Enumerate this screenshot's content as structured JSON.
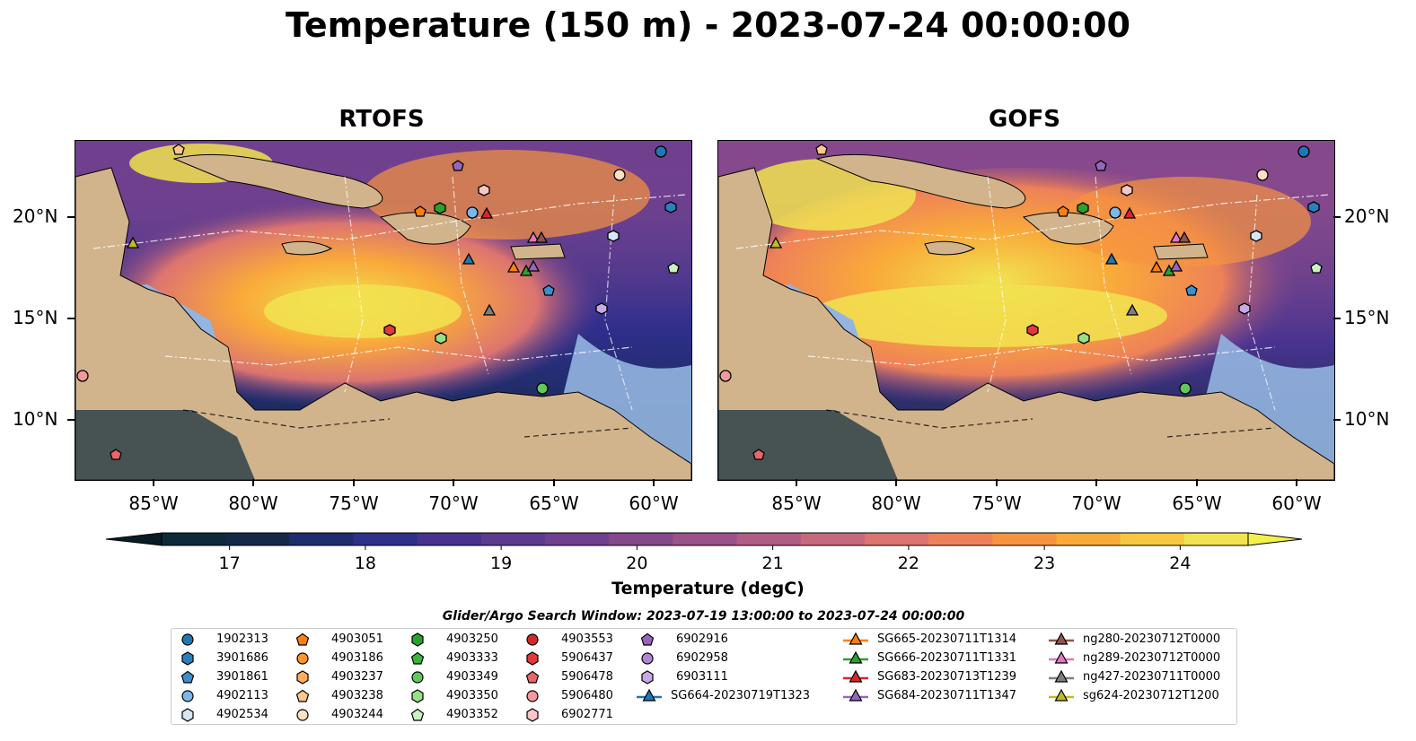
{
  "title": "Temperature (150 m) - 2023-07-24 00:00:00",
  "panels": [
    {
      "title": "RTOFS"
    },
    {
      "title": "GOFS"
    }
  ],
  "lat_labels": [
    "20°N",
    "15°N",
    "10°N"
  ],
  "lon_labels": [
    "85°W",
    "80°W",
    "75°W",
    "70°W",
    "65°W",
    "60°W"
  ],
  "colorbar": {
    "label": "Temperature (degC)",
    "min": 16.5,
    "max": 24.5,
    "step": 0.5,
    "extend": "both",
    "ticks": [
      "17",
      "18",
      "19",
      "20",
      "21",
      "22",
      "23",
      "24"
    ],
    "colors": [
      "#0c2a3a",
      "#142848",
      "#1e2d6b",
      "#2f2f8c",
      "#47338f",
      "#5c3a8f",
      "#6f408f",
      "#85488d",
      "#9a528a",
      "#b15c84",
      "#c7687c",
      "#dc7470",
      "#ee8158",
      "#f6943f",
      "#f9aa3a",
      "#f8c740",
      "#f1e350"
    ],
    "under_color": "#071c24",
    "over_color": "#f2f14a"
  },
  "search_window": "Glider/Argo Search Window: 2023-07-19 13:00:00 to 2023-07-24 00:00:00",
  "legend": {
    "columns": [
      [
        {
          "label": "1902313",
          "marker": "circle",
          "color": "#1f77b4"
        },
        {
          "label": "3901686",
          "marker": "hexagon",
          "color": "#2b7fc0"
        },
        {
          "label": "3901861",
          "marker": "pentagon",
          "color": "#3a8fd0"
        },
        {
          "label": "4902113",
          "marker": "circle",
          "color": "#7ab8e8"
        },
        {
          "label": "4902534",
          "marker": "hexagon",
          "color": "#d6e8f6"
        }
      ],
      [
        {
          "label": "4903051",
          "marker": "pentagon",
          "color": "#ff7f0e"
        },
        {
          "label": "4903186",
          "marker": "circle",
          "color": "#ff9530"
        },
        {
          "label": "4903237",
          "marker": "hexagon",
          "color": "#ffad5e"
        },
        {
          "label": "4903238",
          "marker": "pentagon",
          "color": "#ffc68e"
        },
        {
          "label": "4903244",
          "marker": "circle",
          "color": "#ffe0c2"
        }
      ],
      [
        {
          "label": "4903250",
          "marker": "hexagon",
          "color": "#2ca02c"
        },
        {
          "label": "4903333",
          "marker": "pentagon",
          "color": "#3cb43c"
        },
        {
          "label": "4903349",
          "marker": "circle",
          "color": "#5fc85f"
        },
        {
          "label": "4903350",
          "marker": "hexagon",
          "color": "#98df8a"
        },
        {
          "label": "4903352",
          "marker": "pentagon",
          "color": "#c9f2c0"
        }
      ],
      [
        {
          "label": "4903553",
          "marker": "circle",
          "color": "#d62728"
        },
        {
          "label": "5906437",
          "marker": "hexagon",
          "color": "#e0393c"
        },
        {
          "label": "5906478",
          "marker": "pentagon",
          "color": "#e8666a"
        },
        {
          "label": "5906480",
          "marker": "circle",
          "color": "#f09a9b"
        },
        {
          "label": "6902771",
          "marker": "hexagon",
          "color": "#f8c6c6"
        }
      ],
      [
        {
          "label": "6902916",
          "marker": "pentagon",
          "color": "#9467bd"
        },
        {
          "label": "6902958",
          "marker": "circle",
          "color": "#ae86d2"
        },
        {
          "label": "6903111",
          "marker": "hexagon",
          "color": "#c8a8e6"
        },
        {
          "label": "SG664-20230719T1323",
          "marker": "triangle-line",
          "color": "#1f77b4"
        }
      ],
      [
        {
          "label": "SG665-20230711T1314",
          "marker": "triangle-line",
          "color": "#ff7f0e"
        },
        {
          "label": "SG666-20230711T1331",
          "marker": "triangle-line",
          "color": "#2ca02c"
        },
        {
          "label": "SG683-20230713T1239",
          "marker": "triangle-line",
          "color": "#d62728"
        },
        {
          "label": "SG684-20230711T1347",
          "marker": "triangle-line",
          "color": "#9467bd"
        }
      ],
      [
        {
          "label": "ng280-20230712T0000",
          "marker": "triangle-line",
          "color": "#8c564b"
        },
        {
          "label": "ng289-20230712T0000",
          "marker": "triangle-line",
          "color": "#e377c2"
        },
        {
          "label": "ng427-20230711T0000",
          "marker": "triangle-line",
          "color": "#7f7f7f"
        },
        {
          "label": "sg624-20230712T1200",
          "marker": "triangle-line",
          "color": "#bcbd22"
        }
      ]
    ]
  }
}
